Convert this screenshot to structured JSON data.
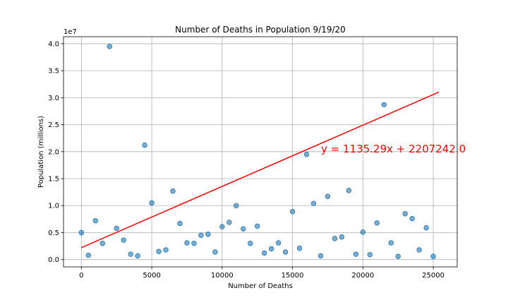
{
  "chart_data": {
    "type": "scatter",
    "title": "Number of Deaths in Population 9/19/20",
    "xlabel": "Number of Deaths",
    "ylabel": "Population (millions)",
    "y_offset_label": "1e7",
    "xlim": [
      -1270,
      26700
    ],
    "ylim": [
      -1350000,
      41300000
    ],
    "x_ticks": [
      0,
      5000,
      10000,
      15000,
      20000,
      25000
    ],
    "x_tick_labels": [
      "0",
      "5000",
      "10000",
      "15000",
      "20000",
      "25000"
    ],
    "y_ticks": [
      0,
      5000000,
      10000000,
      15000000,
      20000000,
      25000000,
      30000000,
      35000000,
      40000000
    ],
    "y_tick_labels": [
      "0.0",
      "0.5",
      "1.0",
      "1.5",
      "2.0",
      "2.5",
      "3.0",
      "3.5",
      "4.0"
    ],
    "grid": true,
    "x": [
      0,
      500,
      1000,
      1500,
      2000,
      2500,
      3000,
      3500,
      4000,
      4500,
      5000,
      5500,
      6000,
      6500,
      7000,
      7500,
      8000,
      8500,
      9000,
      9500,
      10000,
      10500,
      11000,
      11500,
      12000,
      12500,
      13000,
      13500,
      14000,
      14500,
      15000,
      15500,
      16000,
      16500,
      17000,
      17500,
      18000,
      18500,
      19000,
      19500,
      20000,
      20500,
      21000,
      21500,
      22000,
      22500,
      23000,
      23500,
      24000,
      24500,
      25000
    ],
    "y": [
      5000000,
      800000,
      7200000,
      3000000,
      39500000,
      5800000,
      3600000,
      1000000,
      700000,
      21200000,
      10500000,
      1500000,
      1800000,
      12700000,
      6700000,
      3100000,
      3000000,
      4500000,
      4700000,
      1400000,
      6100000,
      6900000,
      10000000,
      5700000,
      3000000,
      6200000,
      1200000,
      2000000,
      3100000,
      1400000,
      8900000,
      2100000,
      19500000,
      10400000,
      700000,
      11700000,
      3900000,
      4200000,
      12800000,
      1000000,
      5100000,
      900000,
      6800000,
      28700000,
      3100000,
      600000,
      8500000,
      7600000,
      1800000,
      5900000,
      600000
    ],
    "regression": {
      "slope": 1135.29,
      "intercept": 2207242.0,
      "x_range": [
        0,
        25400
      ],
      "equation_label": "y = 1135.29x + 2207242.0",
      "color": "#ff0000"
    },
    "point_color": "#1f77b4"
  }
}
